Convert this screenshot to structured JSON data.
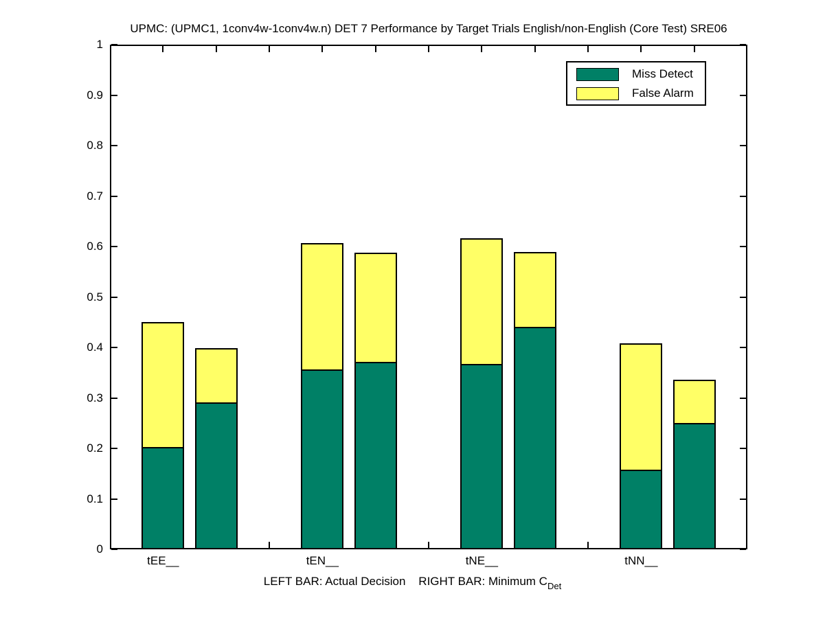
{
  "chart_data": {
    "type": "bar",
    "stacked": true,
    "grouped_pairs": true,
    "title": "UPMC: (UPMC1, 1conv4w-1conv4w.n) DET 7 Performance by Target Trials English/non-English (Core Test) SRE06",
    "xlabel_main": "LEFT BAR: Actual Decision    RIGHT BAR: Minimum C",
    "xlabel_sub": "Det",
    "left_bar_meaning": "Actual Decision",
    "right_bar_meaning": "Minimum CDet",
    "categories": [
      "tEE__",
      "tEN__",
      "tNE__",
      "tNN__"
    ],
    "category_x": [
      1,
      2.5,
      4,
      5.5
    ],
    "bar_pair_offset": 0.5,
    "bar_width": 0.4,
    "xlim": [
      0.5,
      6.5
    ],
    "ylim": [
      0,
      1
    ],
    "yticks": [
      0,
      0.1,
      0.2,
      0.3,
      0.4,
      0.5,
      0.6,
      0.7,
      0.8,
      0.9,
      1
    ],
    "xticks_minor": [
      1,
      1.5,
      2,
      2.5,
      3,
      3.5,
      4,
      4.5,
      5,
      5.5,
      6
    ],
    "grid": false,
    "legend_position": "top-right",
    "series": [
      {
        "name": "Miss Detect",
        "color": "#008066",
        "left_values": [
          0.203,
          0.357,
          0.367,
          0.158
        ],
        "right_values": [
          0.291,
          0.371,
          0.441,
          0.251
        ]
      },
      {
        "name": "False Alarm",
        "color": "#ffff66",
        "left_values": [
          0.248,
          0.25,
          0.25,
          0.25
        ],
        "right_values": [
          0.108,
          0.217,
          0.148,
          0.085
        ]
      }
    ],
    "left_bar_totals": [
      0.451,
      0.607,
      0.617,
      0.408
    ],
    "right_bar_totals": [
      0.399,
      0.588,
      0.589,
      0.336
    ],
    "colors": {
      "axis": "#000000",
      "background": "#ffffff",
      "miss_detect": "#008066",
      "false_alarm": "#ffff66"
    }
  }
}
